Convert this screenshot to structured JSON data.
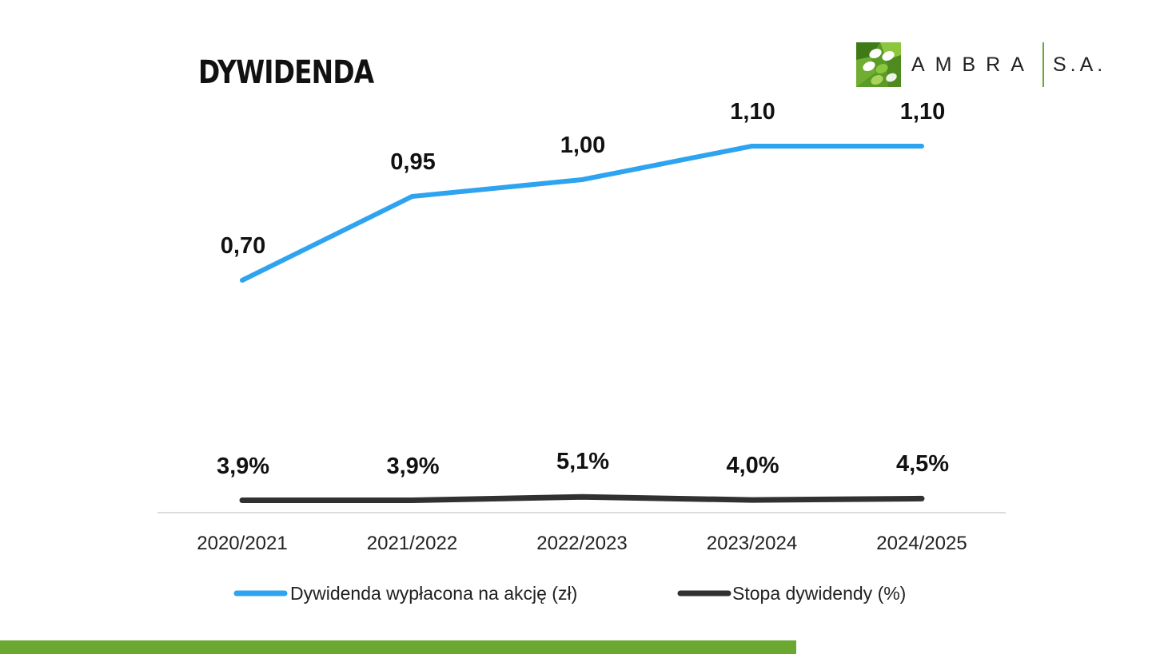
{
  "page": {
    "title": "DYWIDENDA"
  },
  "logo": {
    "name": "AMBRA",
    "suffix": "S.A.",
    "mark_icon": "ambra-grape-leaf-icon",
    "colors": {
      "dark_green": "#4f8a1f",
      "light_green": "#8cc63f"
    }
  },
  "colors": {
    "accent_green": "#6aa832",
    "dividend_line": "#2ea3ef",
    "yield_line": "#2f3133",
    "axis": "#dcdcdc"
  },
  "chart_data": {
    "type": "line",
    "categories": [
      "2020/2021",
      "2021/2022",
      "2022/2023",
      "2023/2024",
      "2024/2025"
    ],
    "series": [
      {
        "name": "Dywidenda wypłacona na akcję (zł)",
        "values": [
          0.7,
          0.95,
          1.0,
          1.1,
          1.1
        ],
        "labels": [
          "0,70",
          "0,95",
          "1,00",
          "1,10",
          "1,10"
        ],
        "color": "#2ea3ef"
      },
      {
        "name": "Stopa dywidendy (%)",
        "values": [
          3.9,
          3.9,
          5.1,
          4.0,
          4.5
        ],
        "labels": [
          "3,9%",
          "3,9%",
          "5,1%",
          "4,0%",
          "4,5%"
        ],
        "color": "#2f3133"
      }
    ],
    "legend_position": "bottom",
    "grid": false
  }
}
